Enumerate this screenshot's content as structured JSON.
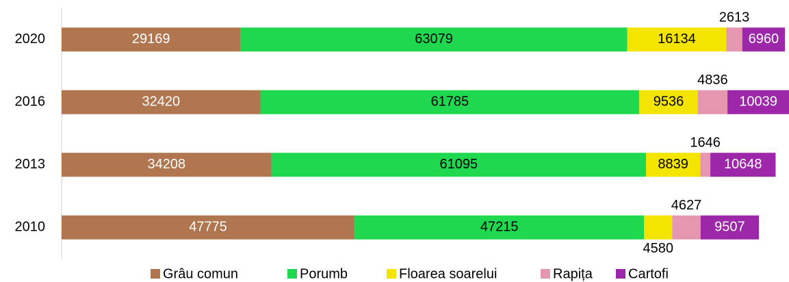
{
  "chart_data": {
    "type": "stacked-bar-horizontal",
    "categories": [
      "2020",
      "2016",
      "2013",
      "2010"
    ],
    "series": [
      {
        "name": "Grâu comun",
        "color": "#b0764f",
        "values": [
          29169,
          32420,
          34208,
          47775
        ]
      },
      {
        "name": "Porumb",
        "color": "#1fd84f",
        "values": [
          63079,
          61785,
          61095,
          47215
        ]
      },
      {
        "name": "Floarea soarelui",
        "color": "#f3e500",
        "values": [
          16134,
          9536,
          8839,
          4580
        ]
      },
      {
        "name": "Rapița",
        "color": "#e697b0",
        "values": [
          2613,
          4836,
          1646,
          4627
        ]
      },
      {
        "name": "Cartofi",
        "color": "#9d27a9",
        "values": [
          6960,
          10039,
          10648,
          9507
        ]
      }
    ],
    "legend": "bottom"
  }
}
